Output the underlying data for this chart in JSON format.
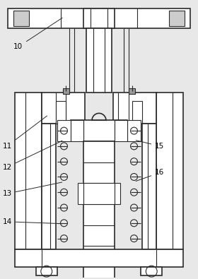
{
  "bg_color": "#e8e8e8",
  "line_color": "#2a2a2a",
  "fig_width": 2.8,
  "fig_height": 3.95,
  "dpi": 100
}
